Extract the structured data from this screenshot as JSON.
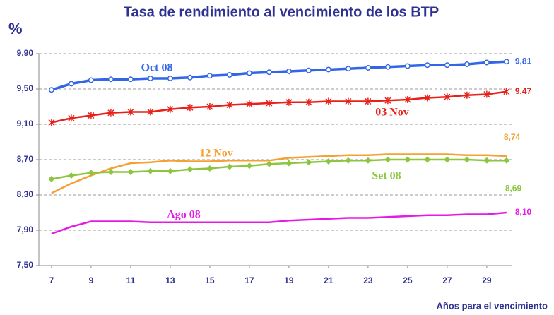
{
  "chart_data": {
    "type": "line",
    "title": "Tasa de rendimiento al vencimiento de los BTP",
    "y_label": "%",
    "x_label": "Años para el vencimiento",
    "x": [
      7,
      8,
      9,
      10,
      11,
      12,
      13,
      14,
      15,
      16,
      17,
      18,
      19,
      20,
      21,
      22,
      23,
      24,
      25,
      26,
      27,
      28,
      29,
      30
    ],
    "xlim": [
      6.36,
      30.29
    ],
    "xticks": [
      7,
      9,
      11,
      13,
      15,
      17,
      19,
      21,
      23,
      25,
      27,
      29
    ],
    "ylim": [
      7.5,
      9.9
    ],
    "yticks": [
      {
        "value": 7.5,
        "label": "7,50"
      },
      {
        "value": 7.9,
        "label": "7,90"
      },
      {
        "value": 8.3,
        "label": "8,30"
      },
      {
        "value": 8.7,
        "label": "8,70"
      },
      {
        "value": 9.1,
        "label": "9,10"
      },
      {
        "value": 9.5,
        "label": "9,50"
      },
      {
        "value": 9.9,
        "label": "9,90"
      }
    ],
    "grid": true,
    "series": [
      {
        "name": "Oct 08",
        "color": "#3366e6",
        "marker": "circle",
        "end_label": "9,81",
        "values": [
          9.49,
          9.56,
          9.6,
          9.61,
          9.61,
          9.62,
          9.62,
          9.63,
          9.65,
          9.66,
          9.68,
          9.69,
          9.7,
          9.71,
          9.72,
          9.73,
          9.74,
          9.75,
          9.76,
          9.77,
          9.77,
          9.78,
          9.8,
          9.81
        ]
      },
      {
        "name": "03 Nov",
        "color": "#e8201a",
        "marker": "star",
        "end_label": "9,47",
        "values": [
          9.12,
          9.17,
          9.2,
          9.23,
          9.24,
          9.24,
          9.27,
          9.29,
          9.3,
          9.32,
          9.33,
          9.34,
          9.35,
          9.35,
          9.36,
          9.36,
          9.36,
          9.37,
          9.38,
          9.4,
          9.41,
          9.43,
          9.44,
          9.47
        ]
      },
      {
        "name": "12 Nov",
        "color": "#f5a030",
        "end_label": "8,74",
        "values": [
          8.32,
          8.43,
          8.52,
          8.6,
          8.66,
          8.67,
          8.69,
          8.68,
          8.68,
          8.69,
          8.69,
          8.69,
          8.72,
          8.73,
          8.74,
          8.75,
          8.75,
          8.76,
          8.76,
          8.76,
          8.76,
          8.75,
          8.75,
          8.74
        ]
      },
      {
        "name": "Set 08",
        "color": "#8cc63f",
        "marker": "diamond",
        "end_label": "8,69",
        "values": [
          8.48,
          8.52,
          8.55,
          8.56,
          8.56,
          8.57,
          8.57,
          8.59,
          8.6,
          8.62,
          8.63,
          8.65,
          8.66,
          8.67,
          8.68,
          8.69,
          8.69,
          8.7,
          8.7,
          8.7,
          8.7,
          8.7,
          8.69,
          8.69
        ]
      },
      {
        "name": "Ago 08",
        "color": "#e619e6",
        "end_label": "8,10",
        "values": [
          7.86,
          7.94,
          8.0,
          8.0,
          8.0,
          7.99,
          7.99,
          7.99,
          7.99,
          7.99,
          7.99,
          7.99,
          8.01,
          8.02,
          8.03,
          8.04,
          8.04,
          8.05,
          8.06,
          8.07,
          8.07,
          8.08,
          8.08,
          8.1
        ]
      }
    ]
  }
}
